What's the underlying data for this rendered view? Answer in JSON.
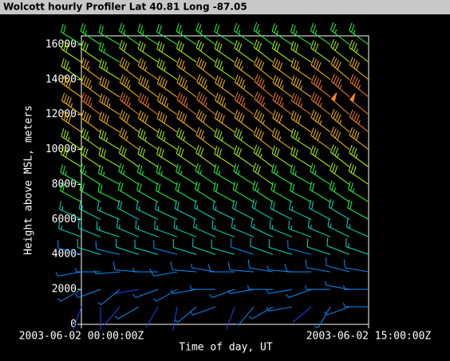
{
  "chart_data": {
    "type": "wind-barb",
    "title": "Wolcott hourly Profiler  Lat 40.81  Long -87.05",
    "xlabel": "Time of day, UT",
    "ylabel": "Height above MSL, meters",
    "x": [
      0,
      1,
      2,
      3,
      4,
      5,
      6,
      7,
      8,
      9,
      10,
      11,
      12,
      13,
      14,
      15
    ],
    "xlim": [
      0,
      15
    ],
    "xticks": [
      {
        "value": 0,
        "label": "2003-06-02 00:00:00Z"
      },
      {
        "value": 15,
        "label": "2003-06-02 15:00:00Z"
      }
    ],
    "heights": [
      1000,
      2000,
      3000,
      4000,
      5000,
      6000,
      7000,
      8000,
      9000,
      10000,
      11000,
      12000,
      13000,
      14000,
      15000,
      16000
    ],
    "ylim": [
      0,
      16500
    ],
    "yticks": [
      0,
      2000,
      4000,
      6000,
      8000,
      10000,
      12000,
      14000,
      16000
    ],
    "colors": [
      "#2040ff",
      "#0090ff",
      "#00e0c0",
      "#20ff40",
      "#b0ff00",
      "#ffc000",
      "#ff8020"
    ],
    "speed": [
      [
        3,
        4,
        3,
        5,
        4,
        3,
        6,
        5,
        4,
        5,
        6,
        5,
        4,
        6,
        7,
        6
      ],
      [
        5,
        6,
        5,
        4,
        6,
        7,
        5,
        6,
        7,
        8,
        6,
        7,
        8,
        7,
        6,
        8
      ],
      [
        8,
        9,
        8,
        10,
        9,
        11,
        10,
        9,
        10,
        11,
        10,
        9,
        10,
        11,
        12,
        10
      ],
      [
        12,
        13,
        12,
        14,
        13,
        12,
        13,
        14,
        13,
        12,
        14,
        13,
        12,
        13,
        14,
        15
      ],
      [
        15,
        16,
        15,
        17,
        16,
        15,
        17,
        16,
        15,
        16,
        17,
        16,
        15,
        16,
        17,
        18
      ],
      [
        18,
        19,
        18,
        20,
        19,
        18,
        20,
        19,
        18,
        20,
        21,
        20,
        19,
        20,
        21,
        22
      ],
      [
        22,
        23,
        22,
        24,
        23,
        22,
        24,
        23,
        22,
        24,
        25,
        24,
        23,
        24,
        25,
        26
      ],
      [
        27,
        28,
        26,
        29,
        28,
        27,
        28,
        29,
        27,
        28,
        30,
        29,
        28,
        29,
        30,
        31
      ],
      [
        32,
        33,
        31,
        34,
        33,
        32,
        33,
        34,
        32,
        33,
        35,
        34,
        33,
        34,
        35,
        36
      ],
      [
        37,
        38,
        36,
        39,
        38,
        37,
        38,
        39,
        37,
        38,
        40,
        39,
        38,
        40,
        41,
        42
      ],
      [
        42,
        43,
        41,
        44,
        43,
        42,
        43,
        44,
        42,
        43,
        45,
        44,
        43,
        45,
        46,
        47
      ],
      [
        46,
        47,
        45,
        48,
        47,
        46,
        47,
        48,
        46,
        47,
        49,
        48,
        47,
        49,
        50,
        51
      ],
      [
        44,
        45,
        43,
        46,
        45,
        44,
        45,
        46,
        44,
        45,
        47,
        46,
        45,
        47,
        48,
        49
      ],
      [
        38,
        39,
        37,
        40,
        39,
        38,
        39,
        40,
        38,
        39,
        41,
        40,
        39,
        41,
        42,
        43
      ],
      [
        30,
        31,
        29,
        32,
        31,
        30,
        31,
        32,
        30,
        31,
        33,
        32,
        31,
        33,
        34,
        35
      ],
      [
        24,
        25,
        23,
        26,
        25,
        24,
        25,
        26,
        24,
        25,
        27,
        26,
        25,
        27,
        28,
        29
      ]
    ],
    "direction": [
      [
        200,
        180,
        220,
        240,
        210,
        190,
        230,
        250,
        200,
        220,
        240,
        260,
        230,
        210,
        250,
        270
      ],
      [
        240,
        250,
        230,
        260,
        250,
        240,
        260,
        270,
        250,
        260,
        270,
        260,
        250,
        270,
        280,
        270
      ],
      [
        260,
        270,
        265,
        275,
        270,
        260,
        275,
        280,
        270,
        275,
        280,
        275,
        270,
        280,
        285,
        280
      ],
      [
        285,
        287,
        283,
        288,
        286,
        285,
        287,
        289,
        286,
        288,
        290,
        287,
        285,
        288,
        291,
        289
      ],
      [
        290,
        292,
        288,
        293,
        291,
        290,
        292,
        294,
        291,
        293,
        295,
        292,
        290,
        293,
        296,
        294
      ],
      [
        295,
        297,
        293,
        298,
        296,
        295,
        297,
        299,
        296,
        298,
        300,
        297,
        295,
        298,
        301,
        299
      ],
      [
        298,
        300,
        296,
        301,
        299,
        298,
        300,
        302,
        299,
        301,
        303,
        300,
        298,
        301,
        304,
        302
      ],
      [
        300,
        302,
        298,
        303,
        301,
        300,
        302,
        304,
        301,
        303,
        305,
        302,
        300,
        303,
        306,
        304
      ],
      [
        302,
        304,
        300,
        305,
        303,
        302,
        304,
        306,
        303,
        305,
        307,
        304,
        302,
        305,
        308,
        306
      ],
      [
        303,
        305,
        301,
        306,
        304,
        303,
        305,
        307,
        304,
        306,
        308,
        305,
        303,
        306,
        309,
        307
      ],
      [
        304,
        306,
        302,
        307,
        305,
        304,
        306,
        308,
        305,
        307,
        309,
        306,
        304,
        307,
        310,
        308
      ],
      [
        305,
        307,
        303,
        308,
        306,
        305,
        307,
        309,
        306,
        308,
        310,
        307,
        305,
        308,
        311,
        309
      ],
      [
        305,
        307,
        303,
        308,
        306,
        305,
        307,
        309,
        306,
        308,
        310,
        307,
        305,
        308,
        311,
        309
      ],
      [
        304,
        306,
        302,
        307,
        305,
        304,
        306,
        308,
        305,
        307,
        309,
        306,
        304,
        307,
        310,
        308
      ],
      [
        303,
        305,
        301,
        306,
        304,
        303,
        305,
        307,
        304,
        306,
        308,
        305,
        303,
        306,
        309,
        307
      ],
      [
        302,
        304,
        300,
        305,
        303,
        302,
        304,
        306,
        303,
        305,
        307,
        304,
        302,
        305,
        308,
        306
      ]
    ]
  }
}
